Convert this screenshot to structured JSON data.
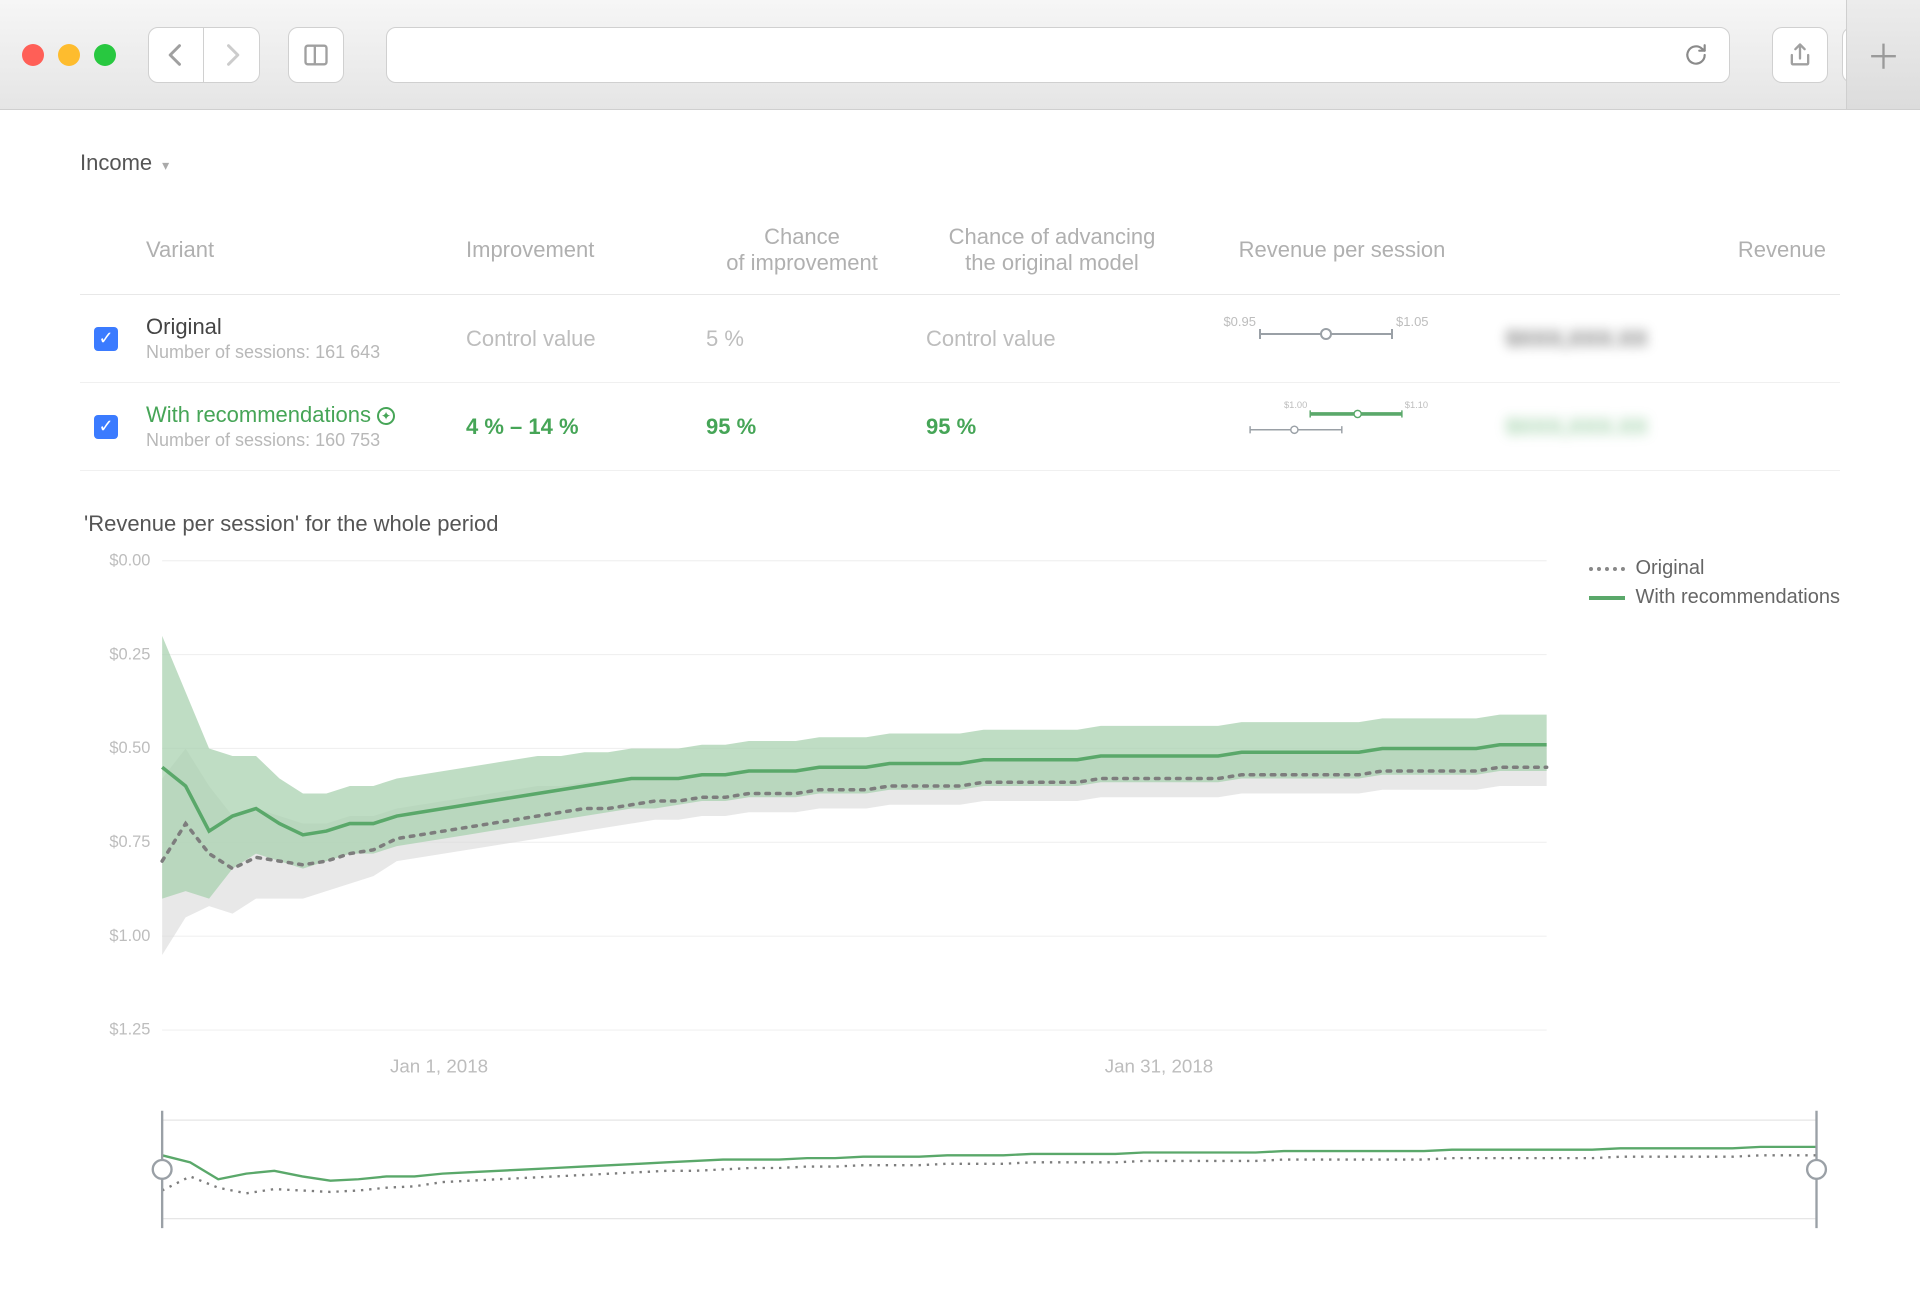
{
  "browser": {
    "traffic_colors": [
      "#ff5f57",
      "#febc2e",
      "#28c840"
    ]
  },
  "page": {
    "dropdown_label": "Income"
  },
  "table": {
    "columns": {
      "variant": "Variant",
      "improvement": "Improvement",
      "chance_improvement_l1": "Chance",
      "chance_improvement_l2": "of improvement",
      "chance_advancing_l1": "Chance of advancing",
      "chance_advancing_l2": "the original model",
      "rps": "Revenue per session",
      "revenue": "Revenue"
    },
    "rows": [
      {
        "checked": true,
        "name": "Original",
        "name_color": "#444444",
        "sessions_label": "Number of sessions: 161 643",
        "improvement": "Control value",
        "improvement_style": "muted",
        "chance_improvement": "5 %",
        "chance_improvement_style": "muted",
        "chance_advancing": "Control value",
        "chance_advancing_style": "muted",
        "rps_plot": {
          "ranges": [
            {
              "min_label": "$0.95",
              "max_label": "$1.05",
              "lo": 0.2,
              "hi": 0.8,
              "mid": 0.5,
              "color": "#9aa0a6"
            }
          ]
        },
        "revenue_blur": "$XXX,XXX.XX",
        "revenue_blur_color": "neutral"
      },
      {
        "checked": true,
        "name": "With recommendations",
        "name_color": "#46a557",
        "badge": true,
        "sessions_label": "Number of sessions: 160 753",
        "improvement": "4 % – 14 %",
        "improvement_style": "green",
        "chance_improvement": "95 %",
        "chance_improvement_style": "green",
        "chance_advancing": "95 %",
        "chance_advancing_style": "green",
        "rps_plot": {
          "ranges": [
            {
              "min_label": "$1.00",
              "max_label": "$1.10",
              "lo": 0.4,
              "hi": 0.98,
              "mid": 0.7,
              "color": "#5aa86a"
            },
            {
              "min_label": "",
              "max_label": "",
              "lo": 0.02,
              "hi": 0.6,
              "mid": 0.3,
              "color": "#9aa0a6"
            }
          ]
        },
        "revenue_blur": "$XXX,XXX.XX",
        "revenue_blur_color": "green"
      }
    ]
  },
  "chart": {
    "title": "'Revenue per session' for the whole period",
    "legend": {
      "original": "Original",
      "with_rec": "With recommendations"
    },
    "y_axis": {
      "min": 0.0,
      "max": 1.25,
      "ticks": [
        "$0.00",
        "$0.25",
        "$0.50",
        "$0.75",
        "$1.00",
        "$1.25"
      ],
      "tick_vals": [
        0.0,
        0.25,
        0.5,
        0.75,
        1.0,
        1.25
      ]
    },
    "x_axis": {
      "labels": [
        "Jan 1, 2018",
        "Jan 31, 2018"
      ],
      "positions": [
        0.2,
        0.72
      ]
    },
    "colors": {
      "original_line": "#7d7d7d",
      "original_band": "#d9d9d9",
      "rec_line": "#5aa86a",
      "rec_band": "#a9d1b0",
      "grid": "#f0f0f0",
      "axis": "#e4e4e4"
    },
    "series": {
      "original": {
        "line": [
          0.8,
          0.7,
          0.78,
          0.82,
          0.79,
          0.8,
          0.81,
          0.8,
          0.78,
          0.77,
          0.74,
          0.73,
          0.72,
          0.71,
          0.7,
          0.69,
          0.68,
          0.67,
          0.66,
          0.66,
          0.65,
          0.64,
          0.64,
          0.63,
          0.63,
          0.62,
          0.62,
          0.62,
          0.61,
          0.61,
          0.61,
          0.6,
          0.6,
          0.6,
          0.6,
          0.59,
          0.59,
          0.59,
          0.59,
          0.59,
          0.58,
          0.58,
          0.58,
          0.58,
          0.58,
          0.58,
          0.57,
          0.57,
          0.57,
          0.57,
          0.57,
          0.57,
          0.56,
          0.56,
          0.56,
          0.56,
          0.56,
          0.55,
          0.55,
          0.55
        ],
        "lo": [
          1.05,
          0.95,
          0.92,
          0.94,
          0.9,
          0.9,
          0.9,
          0.88,
          0.86,
          0.84,
          0.8,
          0.79,
          0.78,
          0.77,
          0.76,
          0.75,
          0.74,
          0.73,
          0.72,
          0.71,
          0.7,
          0.69,
          0.69,
          0.68,
          0.68,
          0.67,
          0.67,
          0.67,
          0.66,
          0.66,
          0.66,
          0.65,
          0.65,
          0.65,
          0.65,
          0.64,
          0.64,
          0.64,
          0.64,
          0.64,
          0.63,
          0.63,
          0.63,
          0.63,
          0.63,
          0.63,
          0.62,
          0.62,
          0.62,
          0.62,
          0.62,
          0.62,
          0.61,
          0.61,
          0.61,
          0.61,
          0.61,
          0.6,
          0.6,
          0.6
        ],
        "hi": [
          0.58,
          0.5,
          0.6,
          0.68,
          0.66,
          0.68,
          0.7,
          0.7,
          0.68,
          0.68,
          0.66,
          0.65,
          0.64,
          0.63,
          0.62,
          0.61,
          0.6,
          0.6,
          0.59,
          0.59,
          0.58,
          0.58,
          0.58,
          0.57,
          0.57,
          0.56,
          0.56,
          0.56,
          0.55,
          0.55,
          0.55,
          0.54,
          0.54,
          0.54,
          0.54,
          0.53,
          0.53,
          0.53,
          0.53,
          0.53,
          0.52,
          0.52,
          0.52,
          0.52,
          0.52,
          0.52,
          0.51,
          0.51,
          0.51,
          0.51,
          0.51,
          0.51,
          0.5,
          0.5,
          0.5,
          0.5,
          0.5,
          0.49,
          0.49,
          0.49
        ]
      },
      "rec": {
        "line": [
          0.55,
          0.6,
          0.72,
          0.68,
          0.66,
          0.7,
          0.73,
          0.72,
          0.7,
          0.7,
          0.68,
          0.67,
          0.66,
          0.65,
          0.64,
          0.63,
          0.62,
          0.61,
          0.6,
          0.59,
          0.58,
          0.58,
          0.58,
          0.57,
          0.57,
          0.56,
          0.56,
          0.56,
          0.55,
          0.55,
          0.55,
          0.54,
          0.54,
          0.54,
          0.54,
          0.53,
          0.53,
          0.53,
          0.53,
          0.53,
          0.52,
          0.52,
          0.52,
          0.52,
          0.52,
          0.52,
          0.51,
          0.51,
          0.51,
          0.51,
          0.51,
          0.51,
          0.5,
          0.5,
          0.5,
          0.5,
          0.5,
          0.49,
          0.49,
          0.49
        ],
        "lo": [
          0.9,
          0.88,
          0.9,
          0.82,
          0.78,
          0.8,
          0.82,
          0.8,
          0.78,
          0.78,
          0.76,
          0.75,
          0.74,
          0.73,
          0.72,
          0.71,
          0.7,
          0.69,
          0.68,
          0.67,
          0.66,
          0.66,
          0.65,
          0.64,
          0.64,
          0.63,
          0.63,
          0.63,
          0.62,
          0.62,
          0.62,
          0.61,
          0.61,
          0.61,
          0.61,
          0.6,
          0.6,
          0.6,
          0.6,
          0.6,
          0.59,
          0.59,
          0.59,
          0.59,
          0.59,
          0.59,
          0.58,
          0.58,
          0.58,
          0.58,
          0.58,
          0.58,
          0.57,
          0.57,
          0.57,
          0.57,
          0.57,
          0.56,
          0.56,
          0.56
        ],
        "hi": [
          0.2,
          0.35,
          0.5,
          0.52,
          0.52,
          0.58,
          0.62,
          0.62,
          0.6,
          0.6,
          0.58,
          0.57,
          0.56,
          0.55,
          0.54,
          0.53,
          0.52,
          0.52,
          0.51,
          0.51,
          0.5,
          0.5,
          0.5,
          0.49,
          0.49,
          0.48,
          0.48,
          0.48,
          0.47,
          0.47,
          0.47,
          0.46,
          0.46,
          0.46,
          0.46,
          0.45,
          0.45,
          0.45,
          0.45,
          0.45,
          0.44,
          0.44,
          0.44,
          0.44,
          0.44,
          0.44,
          0.43,
          0.43,
          0.43,
          0.43,
          0.43,
          0.43,
          0.42,
          0.42,
          0.42,
          0.42,
          0.42,
          0.41,
          0.41,
          0.41
        ]
      }
    }
  }
}
